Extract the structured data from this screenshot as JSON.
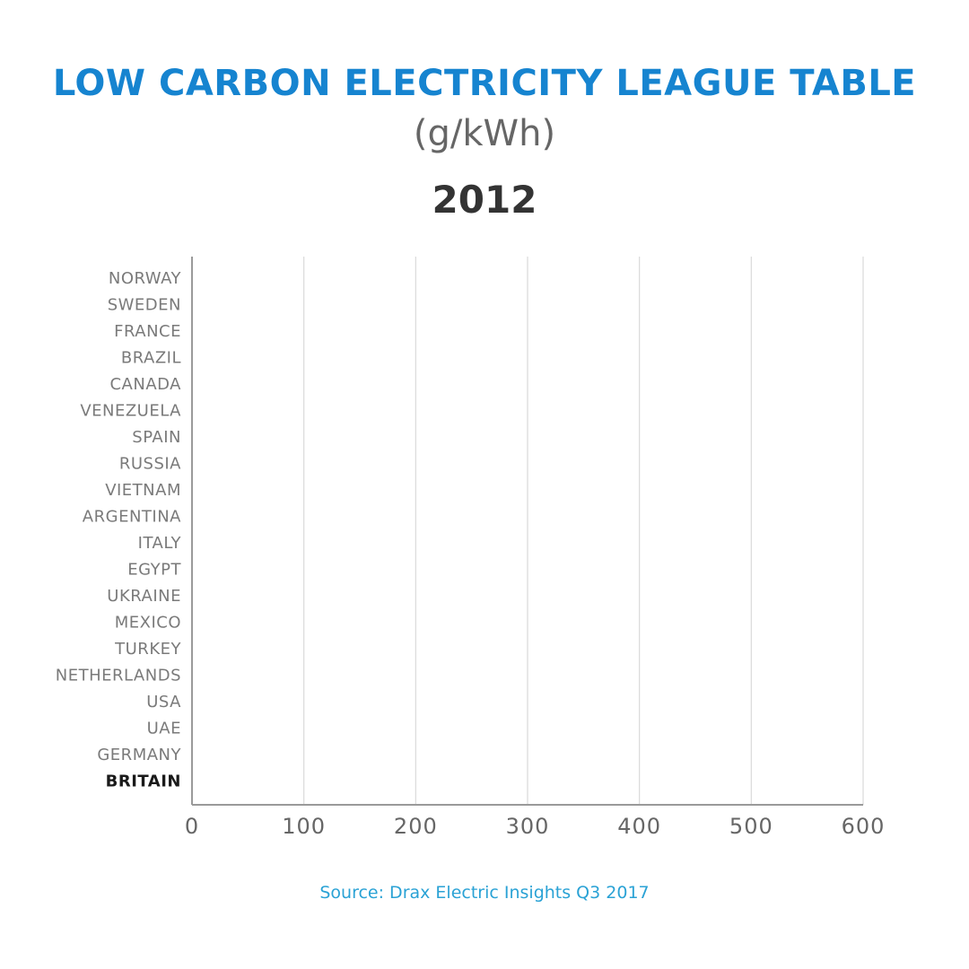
{
  "title": "LOW CARBON ELECTRICITY LEAGUE TABLE",
  "subtitle": "(g/kWh)",
  "year": "2012",
  "source": "Source: Drax Electric Insights Q3 2017",
  "colors": {
    "title": "#1684d0",
    "source": "#2aa2d5",
    "grid": "#d9d9d9",
    "axis": "#9a9a9a",
    "category_text": "#7a7a7a",
    "highlight_text": "#1a1a1a"
  },
  "chart_data": {
    "type": "bar",
    "orientation": "horizontal",
    "categories": [
      "NORWAY",
      "SWEDEN",
      "FRANCE",
      "BRAZIL",
      "CANADA",
      "VENEZUELA",
      "SPAIN",
      "RUSSIA",
      "VIETNAM",
      "ARGENTINA",
      "ITALY",
      "EGYPT",
      "UKRAINE",
      "MEXICO",
      "TURKEY",
      "NETHERLANDS",
      "USA",
      "UAE",
      "GERMANY",
      "BRITAIN"
    ],
    "highlight": "BRITAIN",
    "values": [
      0,
      0,
      0,
      0,
      0,
      0,
      0,
      0,
      0,
      0,
      0,
      0,
      0,
      0,
      0,
      0,
      0,
      0,
      0,
      0
    ],
    "xticks": [
      0,
      100,
      200,
      300,
      400,
      500,
      600
    ],
    "xlim": [
      0,
      600
    ],
    "grid": true,
    "xlabel": "",
    "ylabel": ""
  }
}
